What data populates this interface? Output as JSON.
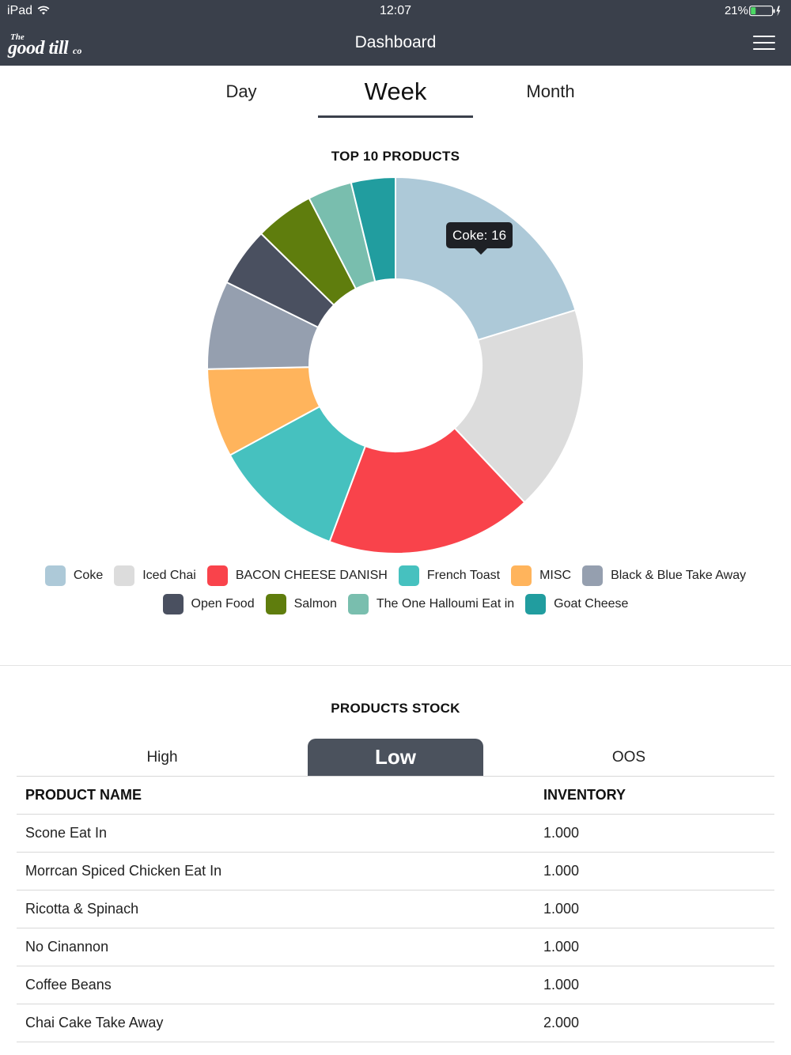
{
  "status_bar": {
    "device": "iPad",
    "time": "12:07",
    "battery": "21%"
  },
  "header": {
    "logo": {
      "the": "The",
      "main": "good till",
      "co": "co"
    },
    "title": "Dashboard"
  },
  "period_tabs": [
    {
      "label": "Day",
      "active": false
    },
    {
      "label": "Week",
      "active": true
    },
    {
      "label": "Month",
      "active": false
    }
  ],
  "top_products": {
    "title": "TOP 10 PRODUCTS",
    "tooltip": "Coke: 16"
  },
  "chart_data": {
    "type": "pie",
    "title": "TOP 10 PRODUCTS",
    "donut": true,
    "categories": [
      "Coke",
      "Iced Chai",
      "BACON CHEESE DANISH",
      "French Toast",
      "MISC",
      "Black & Blue Take Away",
      "Open Food",
      "Salmon",
      "The One Halloumi Eat in",
      "Goat Cheese"
    ],
    "values": [
      16,
      14,
      14,
      9,
      6,
      6,
      4,
      4,
      3,
      3
    ],
    "colors": [
      "#adc9d8",
      "#dcdcdc",
      "#f9434b",
      "#46c1bf",
      "#ffb45c",
      "#959faf",
      "#4a5060",
      "#5f7d0d",
      "#79beae",
      "#219d9f"
    ],
    "legend_position": "bottom"
  },
  "products_stock": {
    "title": "PRODUCTS STOCK",
    "tabs": [
      {
        "label": "High",
        "active": false
      },
      {
        "label": "Low",
        "active": true
      },
      {
        "label": "OOS",
        "active": false
      }
    ],
    "columns": [
      "PRODUCT NAME",
      "INVENTORY"
    ],
    "rows": [
      {
        "name": "Scone Eat In",
        "inventory": "1.000"
      },
      {
        "name": "Morrcan Spiced Chicken Eat In",
        "inventory": "1.000"
      },
      {
        "name": "Ricotta & Spinach",
        "inventory": "1.000"
      },
      {
        "name": "No Cinannon",
        "inventory": "1.000"
      },
      {
        "name": "Coffee Beans",
        "inventory": "1.000"
      },
      {
        "name": "Chai Cake Take Away",
        "inventory": "2.000"
      }
    ]
  },
  "icons": {
    "wifi": "wifi-icon",
    "battery": "battery-icon",
    "menu": "hamburger-menu-icon"
  }
}
